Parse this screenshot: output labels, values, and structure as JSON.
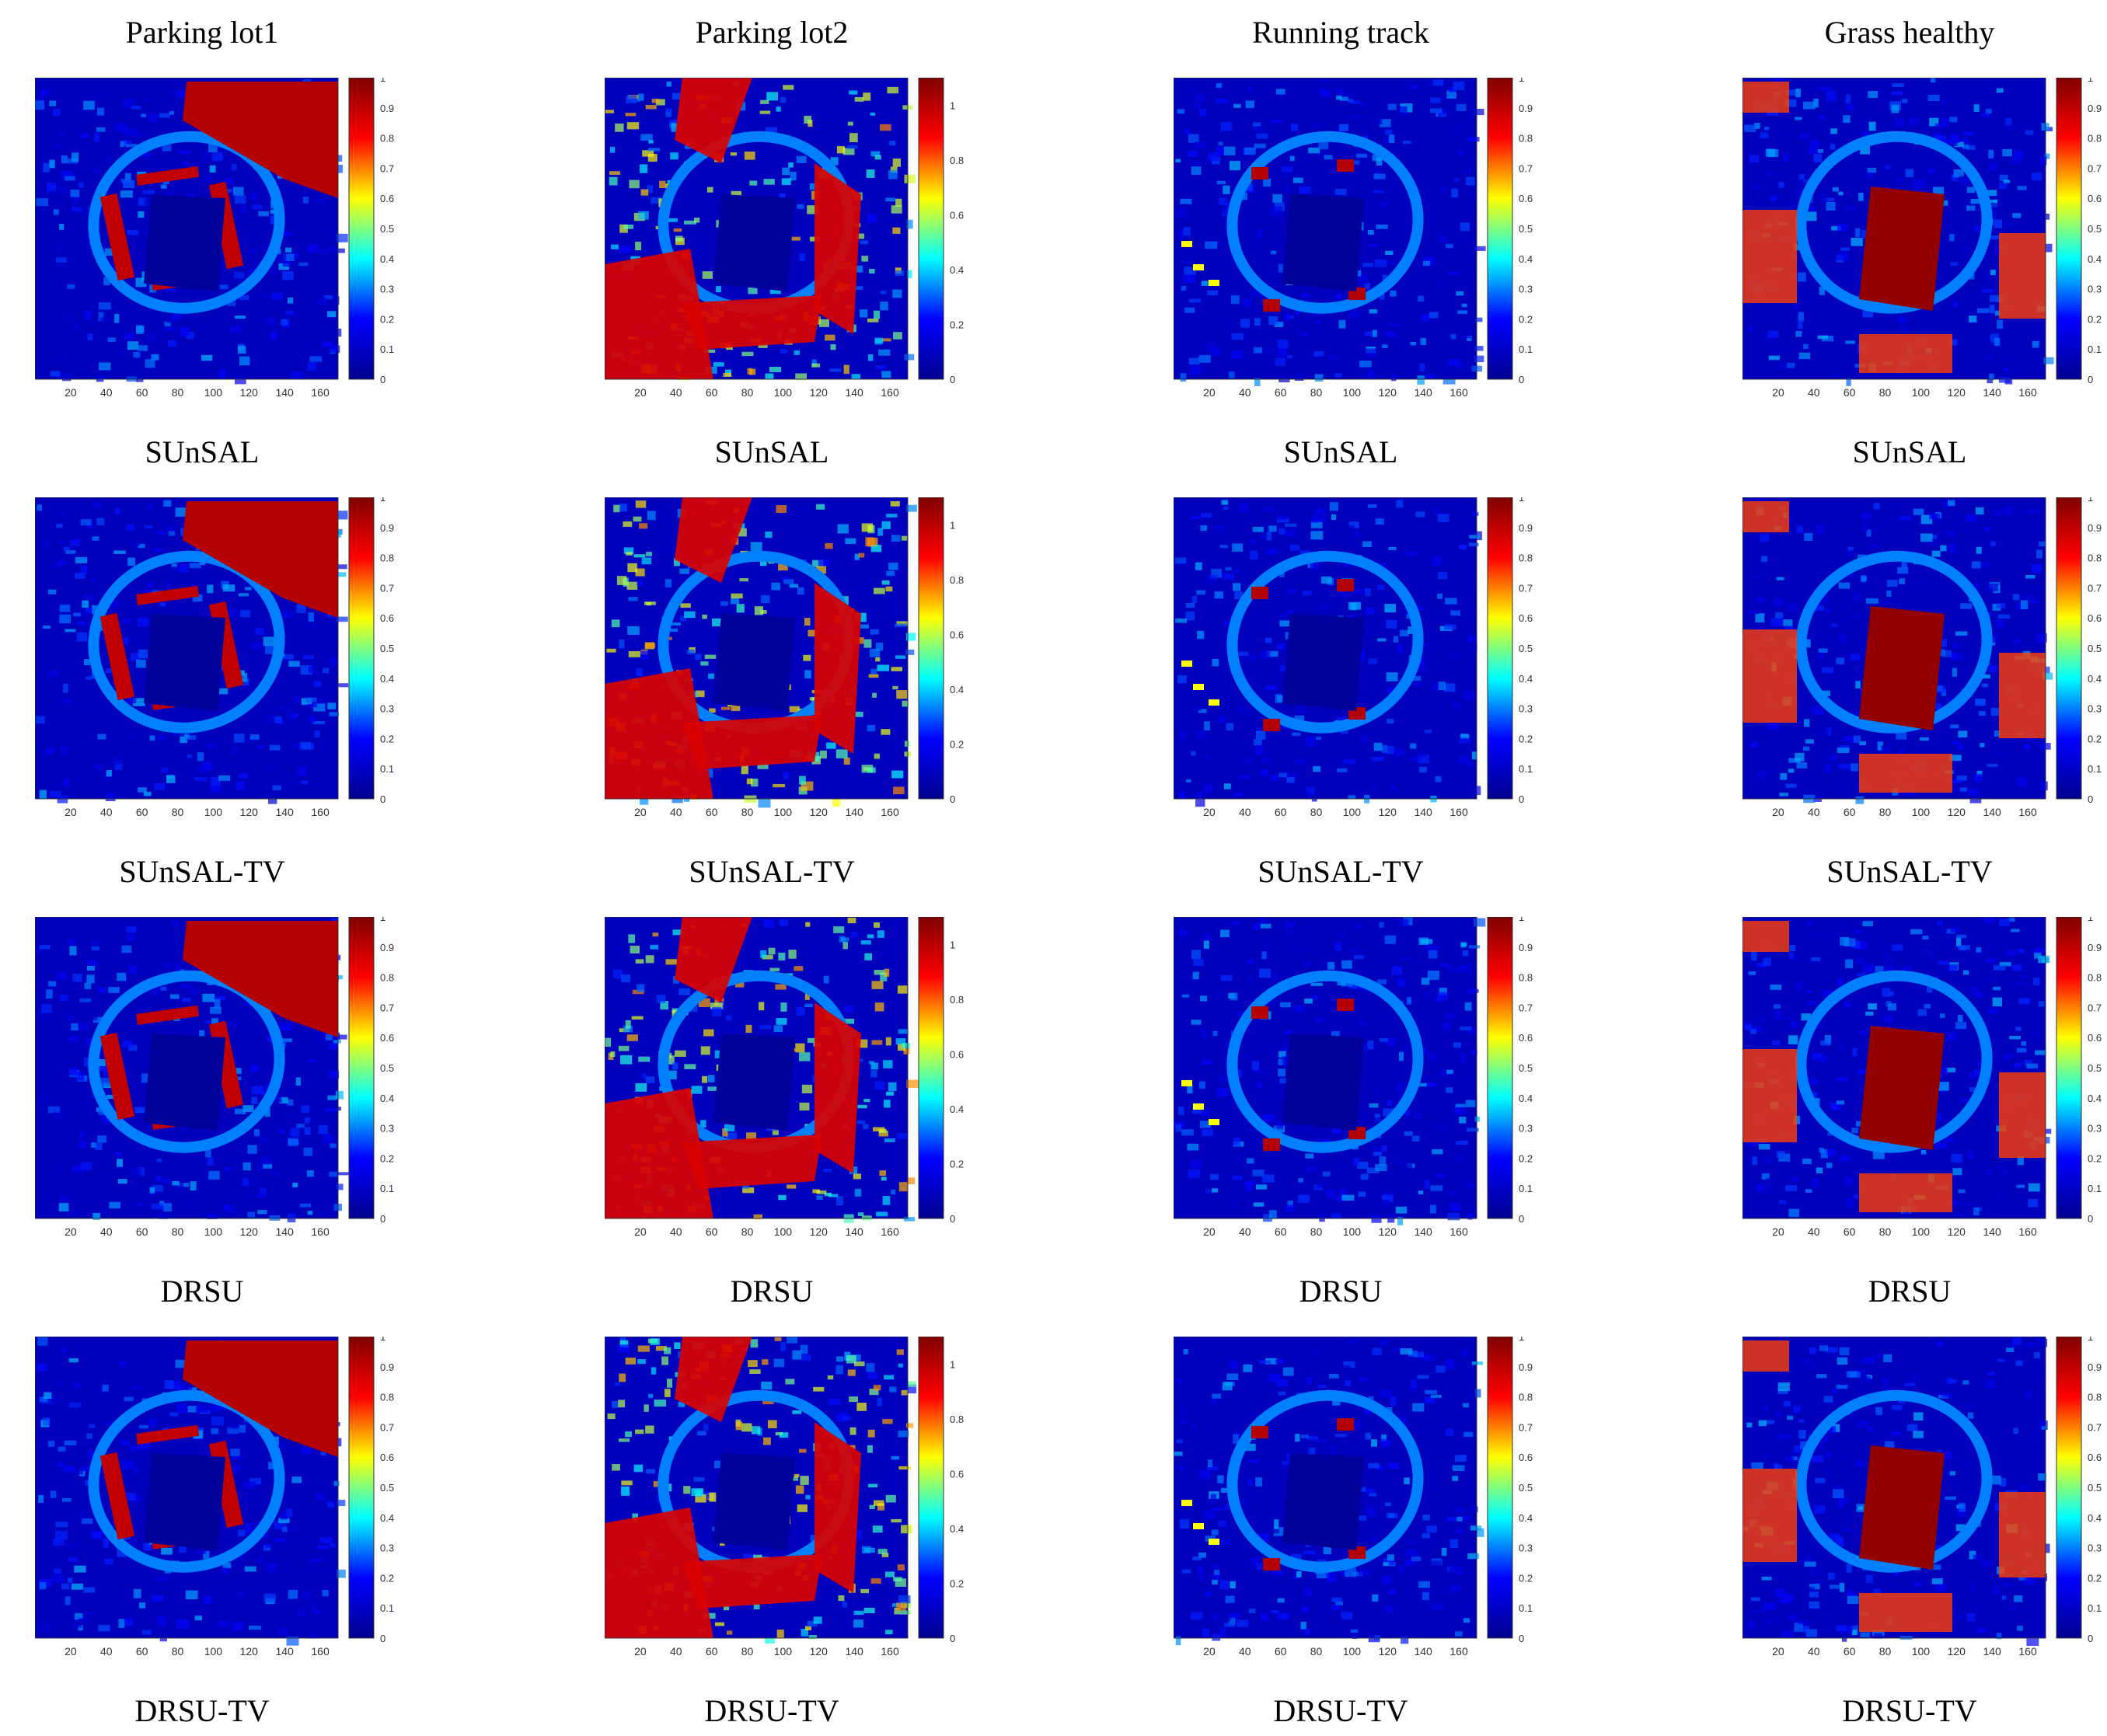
{
  "columns": [
    {
      "id": "parking-lot1",
      "title": "Parking lot1",
      "peak_tick": 1
    },
    {
      "id": "parking-lot2",
      "title": "Parking lot2",
      "peak_tick": 1
    },
    {
      "id": "running-track",
      "title": "Running track",
      "peak_tick": 1
    },
    {
      "id": "grass-healthy",
      "title": "Grass healthy",
      "peak_tick": 1
    }
  ],
  "rows": [
    {
      "method": "SUnSAL"
    },
    {
      "method": "SUnSAL-TV"
    },
    {
      "method": "DRSU"
    },
    {
      "method": "DRSU-TV"
    }
  ],
  "colorbar_ticks": [
    "0",
    "0.1",
    "0.2",
    "0.3",
    "0.4",
    "0.5",
    "0.6",
    "0.7",
    "0.8",
    "0.9",
    "1"
  ],
  "colorbar_ticks_parking_lot2": [
    "0",
    "0.2",
    "0.4",
    "0.6",
    "0.8",
    "1"
  ],
  "axis_ticks": [
    "20",
    "40",
    "60",
    "80",
    "100",
    "120",
    "140",
    "160"
  ],
  "colormap": [
    "#00008f",
    "#0000ff",
    "#00ffff",
    "#ffff00",
    "#ff0000",
    "#800000"
  ]
}
